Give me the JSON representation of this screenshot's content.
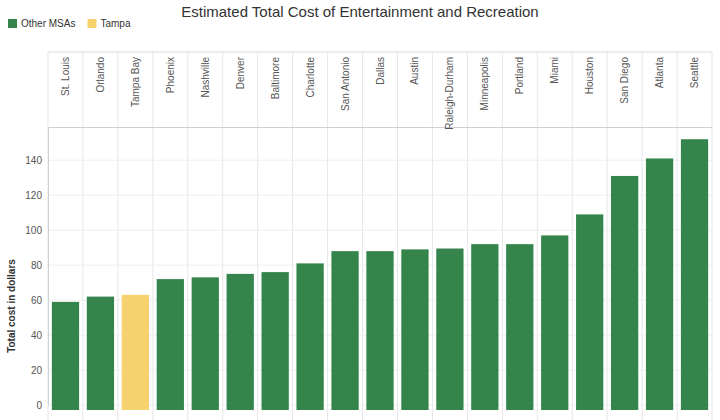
{
  "chart_data": {
    "type": "bar",
    "title": "Estimated Total Cost of Entertainment and Recreation",
    "y_label": "Total cost in dollars",
    "categories": [
      "St. Louis",
      "Orlando",
      "Tampa Bay",
      "Phoenix",
      "Nashville",
      "Denver",
      "Baltimore",
      "Charlotte",
      "San Antonio",
      "Dallas",
      "Austin",
      "Raleigh-Durham",
      "Minneapolis",
      "Portland",
      "Miami",
      "Houston",
      "San Diego",
      "Atlanta",
      "Seattle"
    ],
    "series": [
      {
        "name": "Other MSAs",
        "color": "#34844b",
        "values": [
          59,
          62,
          null,
          72,
          73,
          75,
          76,
          81,
          88,
          88,
          89,
          89.5,
          92,
          92,
          97,
          109,
          131,
          141,
          152
        ]
      },
      {
        "name": "Tampa",
        "color": "#f5d26e",
        "values": [
          null,
          null,
          63,
          null,
          null,
          null,
          null,
          null,
          null,
          null,
          null,
          null,
          null,
          null,
          null,
          null,
          null,
          null,
          null
        ]
      }
    ],
    "ylim": [
      0,
      159
    ],
    "yticks": [
      0,
      20,
      40,
      60,
      80,
      100,
      120,
      140
    ],
    "grid": true,
    "legend": "top-left"
  }
}
